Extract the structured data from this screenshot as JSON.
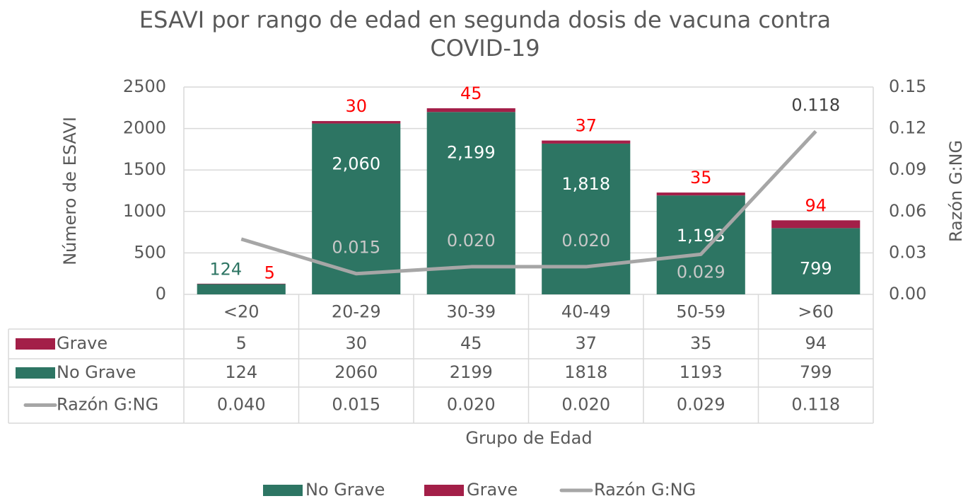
{
  "chart_data": {
    "type": "bar",
    "title": "ESAVI por rango de edad en segunda dosis de vacuna contra COVID-19",
    "x_label": "Grupo de Edad",
    "y_label": "Número de ESAVI",
    "y2_label": "Razón G:NG",
    "stacked": true,
    "categories": [
      "<20",
      "20-29",
      "30-39",
      "40-49",
      "50-59",
      ">60"
    ],
    "series": [
      {
        "name": "No Grave",
        "type": "bar",
        "color": "#2d7563",
        "values": [
          124,
          2060,
          2199,
          1818,
          1193,
          799
        ],
        "value_labels": [
          "124",
          "2,060",
          "2,199",
          "1,818",
          "1,193",
          "799"
        ]
      },
      {
        "name": "Grave",
        "type": "bar",
        "color": "#a31f48",
        "values": [
          5,
          30,
          45,
          37,
          35,
          94
        ]
      },
      {
        "name": "Razón G:NG",
        "type": "line",
        "axis": "y2",
        "color": "#a6a6a6",
        "values": [
          0.04,
          0.015,
          0.02,
          0.02,
          0.029,
          0.118
        ],
        "value_labels": [
          "0.040",
          "0.015",
          "0.020",
          "0.020",
          "0.029",
          "0.118"
        ]
      }
    ],
    "ylim": [
      0,
      2500
    ],
    "yticks": [
      0,
      500,
      1000,
      1500,
      2000,
      2500
    ],
    "y2lim": [
      0,
      0.15
    ],
    "y2ticks": [
      {
        "value": 0,
        "label": "0.00"
      },
      {
        "value": 0.03,
        "label": "0.03"
      },
      {
        "value": 0.06,
        "label": "0.06"
      },
      {
        "value": 0.09,
        "label": "0.09"
      },
      {
        "value": 0.12,
        "label": "0.12"
      },
      {
        "value": 0.15,
        "label": "0.15"
      }
    ],
    "grid": true,
    "data_table": true,
    "legend": "bottom"
  }
}
